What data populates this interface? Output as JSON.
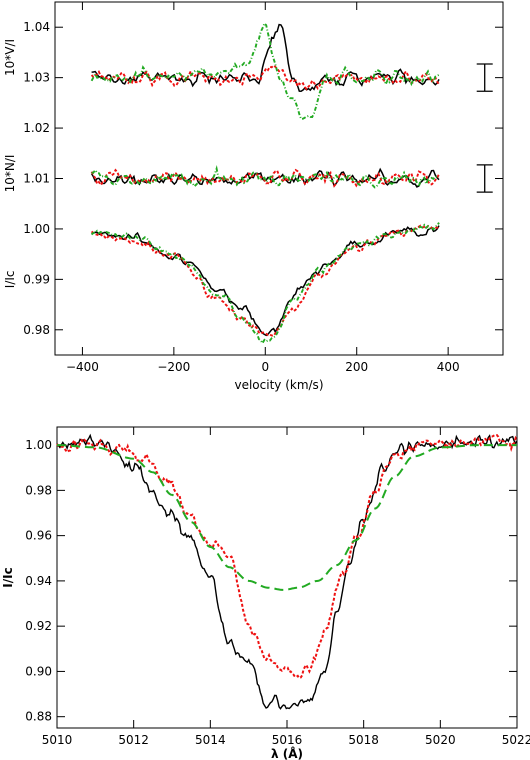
{
  "chart_data": [
    {
      "type": "line",
      "panel": "top",
      "xlabel": "velocity (km/s)",
      "xlim": [
        -460,
        520
      ],
      "ylim": [
        0.975,
        1.045
      ],
      "xticks": [
        -400,
        -200,
        0,
        200,
        400
      ],
      "xtick_labels": [
        "−400",
        "−200",
        "0",
        "200",
        "400"
      ],
      "yticks": [
        0.98,
        0.99,
        1.0,
        1.01,
        1.02,
        1.03,
        1.04
      ],
      "ytick_labels": [
        "0.98",
        "0.99",
        "1.00",
        "1.01",
        "1.02",
        "1.03",
        "1.04"
      ],
      "ylabels": [
        {
          "text": "10*V/I",
          "center": 1.034
        },
        {
          "text": "10*N/I",
          "center": 1.011
        },
        {
          "text": "I/Ic",
          "center": 0.99
        }
      ],
      "error_bars": [
        {
          "x": 480,
          "y": 1.03,
          "half": 0.0027
        },
        {
          "x": 480,
          "y": 1.01,
          "half": 0.0027
        }
      ],
      "colors": {
        "series_1": "#000000",
        "series_2": "#ee1111",
        "series_3": "#22aa22"
      },
      "profiles": {
        "v": [
          -380,
          -300,
          -200,
          -100,
          -50,
          0,
          20,
          60,
          120,
          200,
          300,
          380
        ],
        "series_1": [
          0.9995,
          0.9985,
          0.995,
          0.988,
          0.9845,
          0.979,
          0.98,
          0.987,
          0.9925,
          0.997,
          0.9995,
          1.0
        ],
        "series_2": [
          0.9995,
          0.998,
          0.9945,
          0.986,
          0.982,
          0.979,
          0.979,
          0.984,
          0.991,
          0.9965,
          0.9995,
          1.0005
        ],
        "series_3": [
          0.9995,
          0.9985,
          0.995,
          0.987,
          0.983,
          0.9775,
          0.979,
          0.9855,
          0.992,
          0.9968,
          0.9996,
          1.0005
        ]
      },
      "stokes_v": {
        "v": [
          -380,
          -100,
          -40,
          -15,
          0,
          20,
          35,
          60,
          90,
          140,
          380
        ],
        "series_1": [
          1.03,
          1.03,
          1.0295,
          1.03,
          1.033,
          1.039,
          1.0395,
          1.03,
          1.027,
          1.03,
          1.03
        ],
        "series_2": [
          1.03,
          1.03,
          1.03,
          1.03,
          1.031,
          1.032,
          1.031,
          1.029,
          1.027,
          1.03,
          1.03
        ],
        "series_3": [
          1.03,
          1.031,
          1.033,
          1.038,
          1.04,
          1.033,
          1.029,
          1.025,
          1.022,
          1.03,
          1.03
        ]
      },
      "null_level": 1.01
    },
    {
      "type": "line",
      "panel": "bottom",
      "xlabel": "λ (Å)",
      "ylabel": "I/Ic",
      "xlim": [
        5010,
        5022
      ],
      "ylim": [
        0.875,
        1.008
      ],
      "xticks": [
        5010,
        5012,
        5014,
        5016,
        5018,
        5020,
        5022
      ],
      "xtick_labels": [
        "5010",
        "5012",
        "5014",
        "5016",
        "5018",
        "5020",
        "5022"
      ],
      "yticks": [
        0.88,
        0.9,
        0.92,
        0.94,
        0.96,
        0.98,
        1.0
      ],
      "ytick_labels": [
        "0.88",
        "0.90",
        "0.92",
        "0.94",
        "0.96",
        "0.98",
        "1.00"
      ],
      "series": [
        {
          "style": "solid",
          "color": "#000000",
          "x": [
            5010.0,
            5011.0,
            5011.5,
            5012.0,
            5012.5,
            5013.0,
            5013.5,
            5014.0,
            5014.5,
            5015.0,
            5015.5,
            5015.8,
            5016.2,
            5016.6,
            5017.0,
            5017.3,
            5017.6,
            5018.0,
            5018.5,
            5019.0,
            5019.5,
            5020.0,
            5021.0,
            5022.0
          ],
          "y": [
            1.0,
            1.002,
            0.998,
            0.99,
            0.978,
            0.968,
            0.958,
            0.942,
            0.912,
            0.904,
            0.885,
            0.884,
            0.887,
            0.889,
            0.9,
            0.925,
            0.945,
            0.968,
            0.992,
            0.998,
            1.0,
            1.0,
            1.002,
            1.002
          ]
        },
        {
          "style": "dotted",
          "color": "#ee1111",
          "x": [
            5010.0,
            5011.0,
            5011.8,
            5012.3,
            5012.8,
            5013.5,
            5014.0,
            5014.5,
            5015.0,
            5015.5,
            5015.8,
            5016.2,
            5016.6,
            5017.0,
            5017.4,
            5017.8,
            5018.3,
            5018.8,
            5019.5,
            5020.0,
            5021.0,
            5022.0
          ],
          "y": [
            1.0,
            1.0,
            0.998,
            0.994,
            0.985,
            0.968,
            0.956,
            0.95,
            0.92,
            0.905,
            0.901,
            0.898,
            0.902,
            0.918,
            0.942,
            0.958,
            0.98,
            0.995,
            1.0,
            1.0,
            1.002,
            1.002
          ]
        },
        {
          "style": "dashed",
          "color": "#22aa22",
          "x": [
            5010.0,
            5011.0,
            5012.0,
            5012.5,
            5013.0,
            5013.5,
            5014.0,
            5014.5,
            5015.0,
            5015.5,
            5015.9,
            5016.3,
            5016.8,
            5017.3,
            5017.8,
            5018.3,
            5018.8,
            5019.3,
            5020.0,
            5021.0,
            5022.0
          ],
          "y": [
            1.0,
            0.999,
            0.994,
            0.988,
            0.978,
            0.966,
            0.955,
            0.946,
            0.94,
            0.937,
            0.936,
            0.937,
            0.94,
            0.947,
            0.958,
            0.972,
            0.986,
            0.995,
            0.999,
            1.0,
            1.0
          ]
        }
      ]
    }
  ]
}
